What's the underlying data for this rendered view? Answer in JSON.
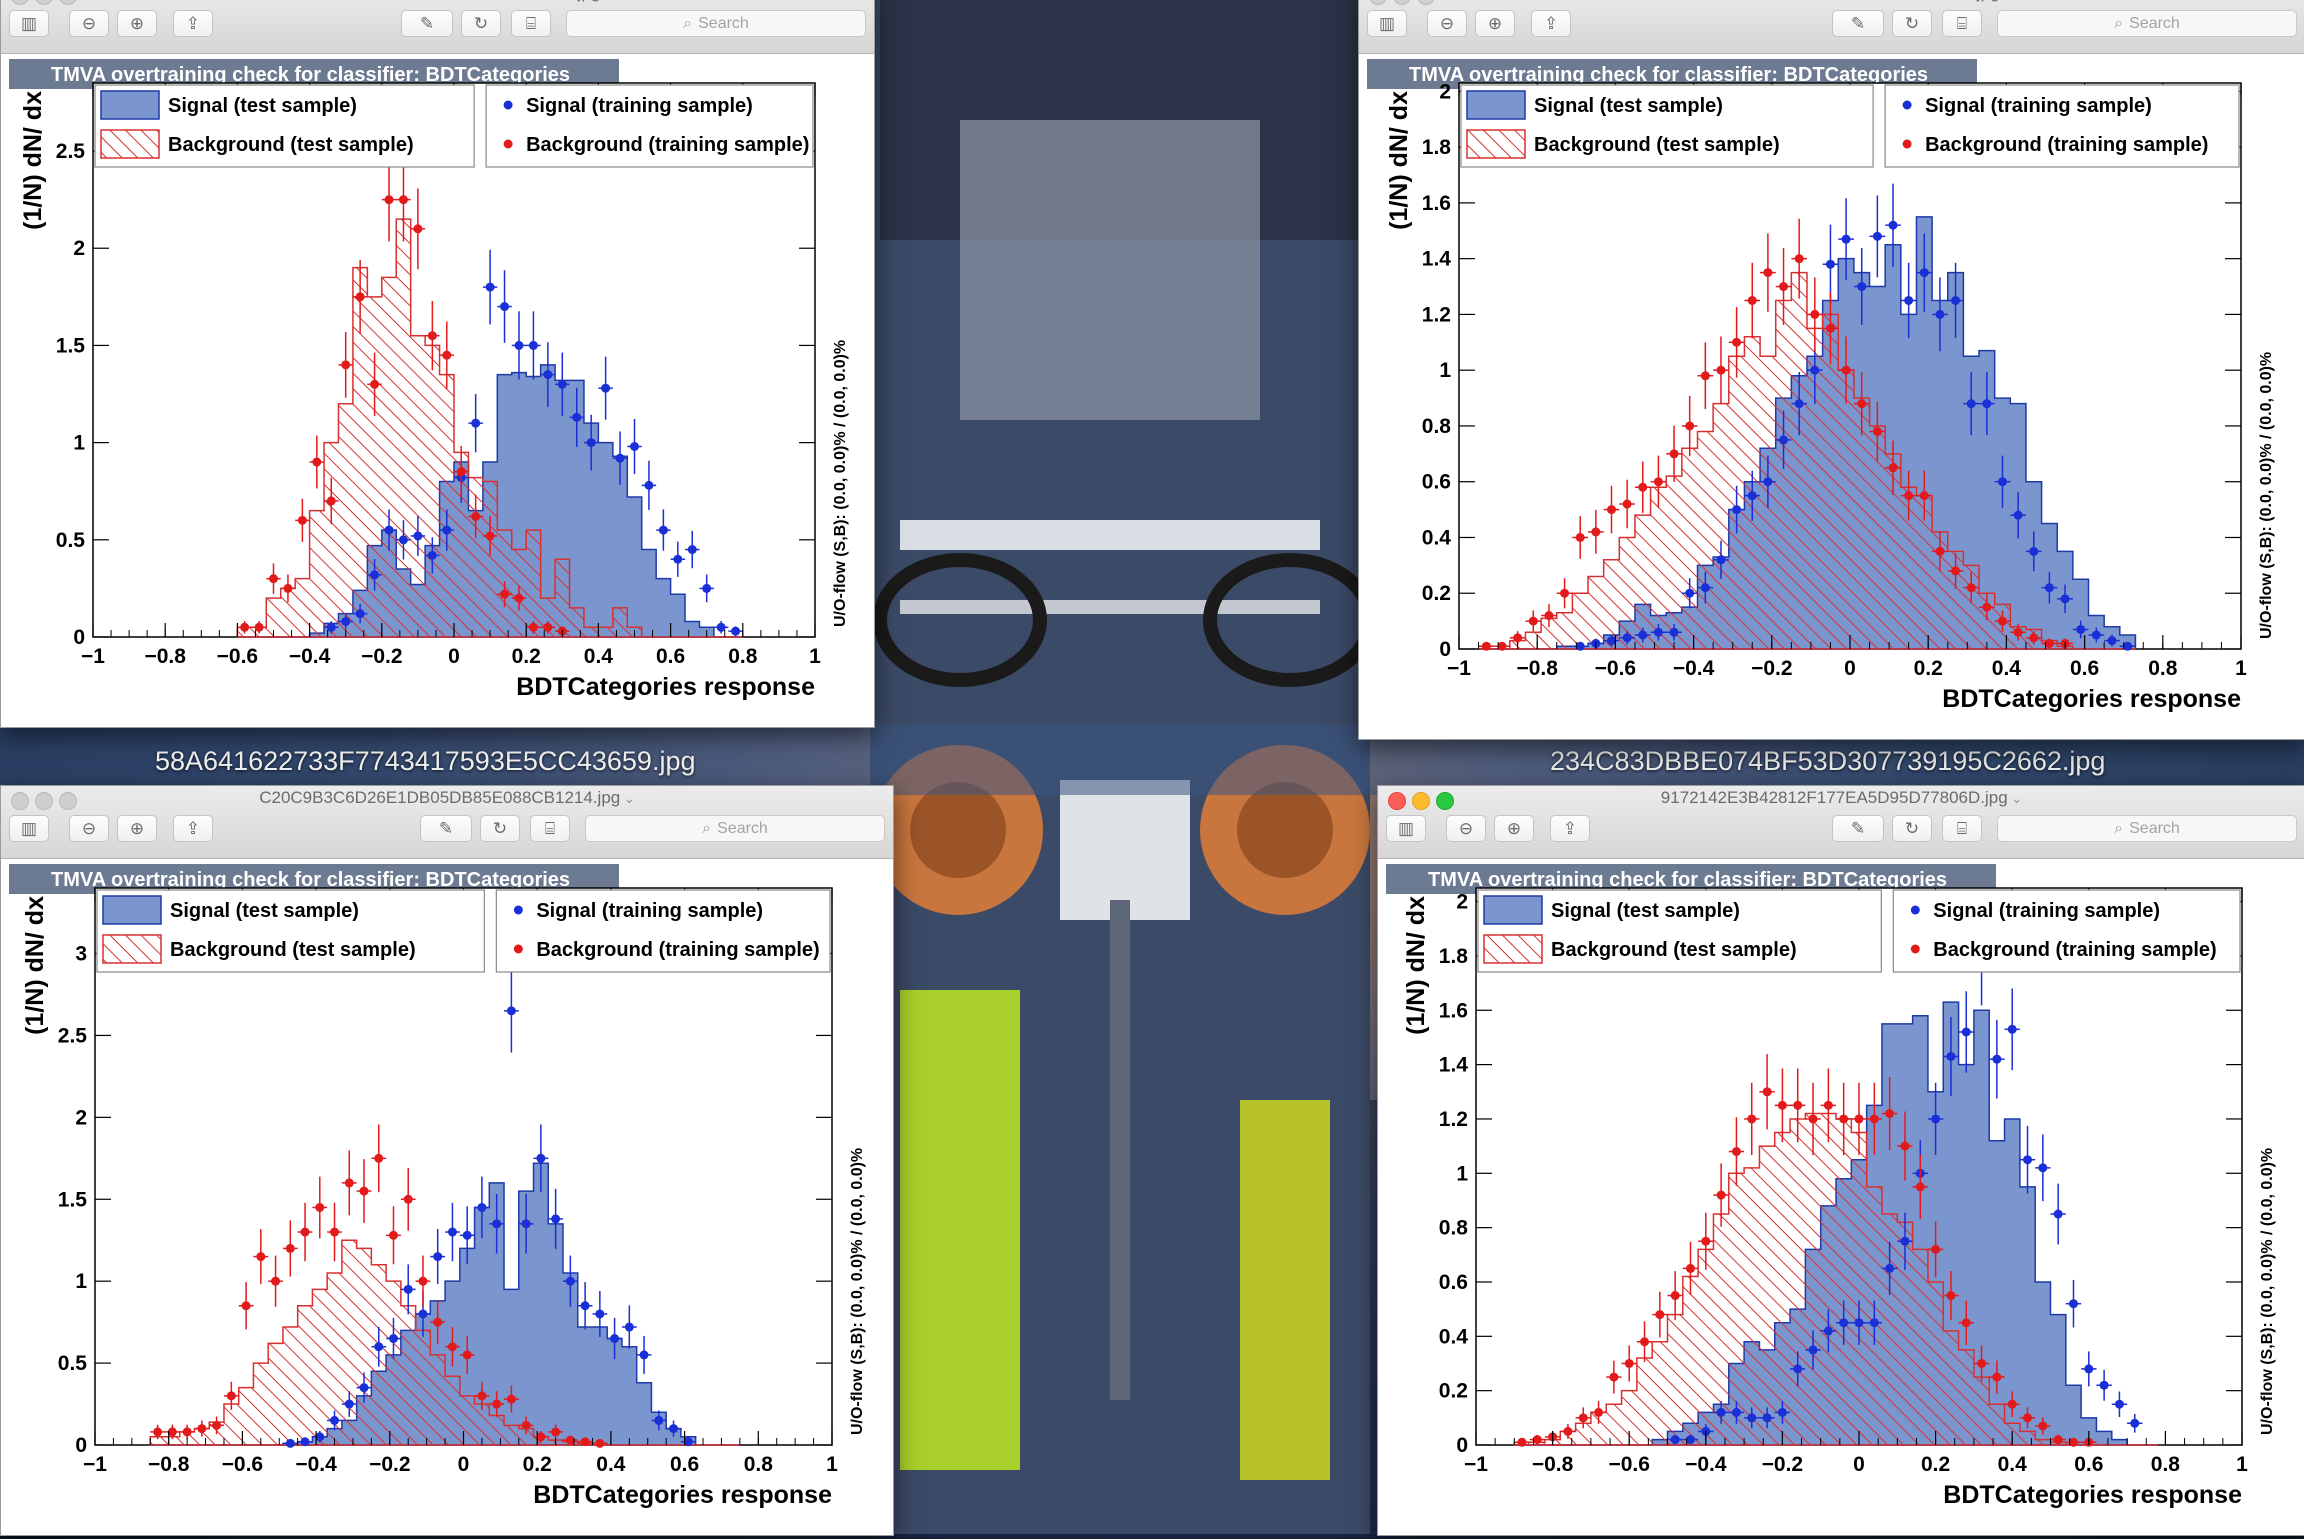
{
  "desktop": {
    "label_left": "58A641622733F7743417593E5CC43659.jpg",
    "label_right": "234C83DBBE074BF53D307739195C2662.jpg"
  },
  "icons": [
    "sidebar-toggle-icon",
    "zoom-out-icon",
    "zoom-in-icon",
    "share-icon",
    "markup-pen-icon",
    "rotate-icon",
    "toolbox-icon",
    "search-icon"
  ],
  "windows": [
    {
      "title": "58A641622733F7743417593E5CC43659.jpg",
      "search_placeholder": "Search",
      "active": false,
      "chart_data": {
        "type": "bar",
        "title": "TMVA overtraining check for classifier: BDTCategories",
        "xlabel": "BDTCategories response",
        "ylabel": "(1/N) dN/ dx",
        "right_label": "U/O-flow (S,B): (0.0, 0.0)% / (0.0, 0.0)%",
        "xlim": [
          -1,
          1
        ],
        "ylim": [
          0,
          2.85
        ],
        "xticks": [
          "−1",
          "−0.8",
          "−0.6",
          "−0.4",
          "−0.2",
          "0",
          "0.2",
          "0.4",
          "0.6",
          "0.8",
          "1"
        ],
        "yticks": [
          "0",
          "0.5",
          "1",
          "1.5",
          "2",
          "2.5"
        ],
        "x_start": -0.6,
        "bin_width": 0.04,
        "legend": [
          "Signal (test sample)",
          "Signal (training sample)",
          "Background (test sample)",
          "Background (training sample)"
        ],
        "series": [
          {
            "name": "Signal (test sample)",
            "values": [
              0,
              0,
              0,
              0,
              0,
              0.02,
              0.07,
              0.12,
              0.24,
              0.47,
              0.55,
              0.35,
              0.27,
              0.47,
              0.8,
              0.9,
              0.65,
              0.9,
              1.35,
              1.36,
              1.34,
              1.4,
              1.32,
              1.32,
              1.1,
              1.0,
              0.93,
              0.72,
              0.45,
              0.3,
              0.22,
              0.08,
              0.05,
              0,
              0
            ]
          },
          {
            "name": "Signal (training sample)",
            "values": [
              0,
              0,
              0,
              0,
              0,
              0,
              0.05,
              0.08,
              0.12,
              0.32,
              0.55,
              0.5,
              0.52,
              0.42,
              0.55,
              0.82,
              1.1,
              1.8,
              1.7,
              1.5,
              1.5,
              1.35,
              1.3,
              1.13,
              1.0,
              1.28,
              0.92,
              0.98,
              0.78,
              0.55,
              0.4,
              0.45,
              0.25,
              0.05,
              0.03
            ]
          },
          {
            "name": "Background (test sample)",
            "values": [
              0.05,
              0.05,
              0.2,
              0.25,
              0.3,
              0.65,
              1.0,
              1.2,
              1.9,
              1.75,
              1.85,
              2.15,
              1.55,
              1.5,
              1.35,
              0.95,
              0.82,
              0.8,
              0.55,
              0.45,
              0.55,
              0.2,
              0.4,
              0.15,
              0.05,
              0.05,
              0.15,
              0.05,
              0,
              0,
              0,
              0,
              0,
              0,
              0
            ]
          },
          {
            "name": "Background (training sample)",
            "values": [
              0.05,
              0.05,
              0.3,
              0.25,
              0.6,
              0.9,
              0.7,
              1.4,
              1.75,
              1.3,
              2.25,
              2.25,
              2.1,
              1.55,
              1.45,
              0.85,
              0.62,
              0.52,
              0.22,
              0.2,
              0.05,
              0.05,
              0.03,
              0,
              0,
              0,
              0,
              0,
              0,
              0,
              0,
              0,
              0,
              0,
              0
            ]
          }
        ]
      }
    },
    {
      "title": "234C83DBBE074BF53D307739195C2662.jpg",
      "search_placeholder": "Search",
      "active": false,
      "chart_data": {
        "type": "bar",
        "title": "TMVA overtraining check for classifier: BDTCategories",
        "xlabel": "BDTCategories response",
        "ylabel": "(1/N) dN/ dx",
        "right_label": "U/O-flow (S,B): (0.0, 0.0)% / (0.0, 0.0)%",
        "xlim": [
          -1,
          1
        ],
        "ylim": [
          0,
          2.03
        ],
        "xticks": [
          "−1",
          "−0.8",
          "−0.6",
          "−0.4",
          "−0.2",
          "0",
          "0.2",
          "0.4",
          "0.6",
          "0.8",
          "1"
        ],
        "yticks": [
          "0",
          "0.2",
          "0.4",
          "0.6",
          "0.8",
          "1",
          "1.2",
          "1.4",
          "1.6",
          "1.8",
          "2"
        ],
        "x_start": -0.95,
        "bin_width": 0.04,
        "legend": [
          "Signal (test sample)",
          "Signal (training sample)",
          "Background (test sample)",
          "Background (training sample)"
        ],
        "series": [
          {
            "name": "Signal (test sample)",
            "values": [
              0,
              0,
              0,
              0,
              0,
              0.01,
              0.01,
              0.02,
              0.05,
              0.1,
              0.16,
              0.12,
              0.13,
              0.15,
              0.3,
              0.33,
              0.5,
              0.6,
              0.72,
              0.9,
              0.98,
              1.05,
              1.25,
              1.4,
              1.35,
              1.3,
              1.45,
              1.2,
              1.55,
              1.25,
              1.35,
              1.05,
              1.07,
              0.9,
              0.88,
              0.6,
              0.45,
              0.35,
              0.25,
              0.12,
              0.08,
              0.05
            ]
          },
          {
            "name": "Signal (training sample)",
            "values": [
              0,
              0,
              0,
              0,
              0,
              0,
              0.01,
              0.02,
              0.03,
              0.04,
              0.05,
              0.06,
              0.06,
              0.2,
              0.22,
              0.32,
              0.5,
              0.55,
              0.6,
              0.75,
              0.88,
              1.0,
              1.38,
              1.47,
              1.3,
              1.48,
              1.52,
              1.25,
              1.35,
              1.2,
              1.25,
              0.88,
              0.88,
              0.6,
              0.48,
              0.35,
              0.22,
              0.18,
              0.07,
              0.05,
              0.03,
              0.01
            ]
          },
          {
            "name": "Background (test sample)",
            "values": [
              0,
              0,
              0.03,
              0.06,
              0.11,
              0.13,
              0.2,
              0.26,
              0.32,
              0.4,
              0.48,
              0.58,
              0.62,
              0.72,
              0.78,
              0.88,
              1.05,
              1.12,
              1.05,
              1.25,
              1.35,
              1.15,
              1.2,
              1.0,
              0.9,
              0.8,
              0.7,
              0.58,
              0.55,
              0.42,
              0.35,
              0.3,
              0.2,
              0.16,
              0.08,
              0.07,
              0.03,
              0.01,
              0,
              0,
              0,
              0
            ]
          },
          {
            "name": "Background (training sample)",
            "values": [
              0.01,
              0.01,
              0.04,
              0.1,
              0.12,
              0.2,
              0.4,
              0.42,
              0.5,
              0.52,
              0.58,
              0.6,
              0.7,
              0.8,
              0.98,
              1.0,
              1.1,
              1.25,
              1.35,
              1.3,
              1.4,
              1.2,
              1.15,
              1.0,
              0.88,
              0.78,
              0.65,
              0.55,
              0.55,
              0.35,
              0.28,
              0.22,
              0.15,
              0.1,
              0.06,
              0.04,
              0.02,
              0.02,
              0,
              0,
              0,
              0
            ]
          }
        ]
      }
    },
    {
      "title": "C20C9B3C6D26E1DB05DB85E088CB1214.jpg",
      "search_placeholder": "Search",
      "active": false,
      "chart_data": {
        "type": "bar",
        "title": "TMVA overtraining check for classifier: BDTCategories",
        "xlabel": "BDTCategories response",
        "ylabel": "(1/N) dN/ dx",
        "right_label": "U/O-flow (S,B): (0.0, 0.0)% / (0.0, 0.0)%",
        "xlim": [
          -1,
          1
        ],
        "ylim": [
          0,
          3.4
        ],
        "xticks": [
          "−1",
          "−0.8",
          "−0.6",
          "−0.4",
          "−0.2",
          "0",
          "0.2",
          "0.4",
          "0.6",
          "0.8",
          "1"
        ],
        "yticks": [
          "0",
          "0.5",
          "1",
          "1.5",
          "2",
          "2.5",
          "3"
        ],
        "x_start": -0.85,
        "bin_width": 0.04,
        "legend": [
          "Signal (test sample)",
          "Signal (training sample)",
          "Background (test sample)",
          "Background (training sample)"
        ],
        "series": [
          {
            "name": "Signal (test sample)",
            "values": [
              0,
              0,
              0,
              0,
              0,
              0,
              0,
              0,
              0,
              0.01,
              0.02,
              0.05,
              0.1,
              0.15,
              0.3,
              0.45,
              0.55,
              0.7,
              0.8,
              0.88,
              1.0,
              1.2,
              1.45,
              1.6,
              0.95,
              1.55,
              1.72,
              1.35,
              1.05,
              0.72,
              0.72,
              0.65,
              0.6,
              0.38,
              0.2,
              0.1,
              0.05,
              0,
              0,
              0
            ]
          },
          {
            "name": "Signal (training sample)",
            "values": [
              0,
              0,
              0,
              0,
              0,
              0,
              0,
              0,
              0,
              0.01,
              0.02,
              0.05,
              0.15,
              0.25,
              0.35,
              0.6,
              0.65,
              0.95,
              0.8,
              1.15,
              1.3,
              1.28,
              1.45,
              1.35,
              2.65,
              1.35,
              1.75,
              1.38,
              1.0,
              0.85,
              0.8,
              0.65,
              0.72,
              0.55,
              0.15,
              0.1,
              0.02,
              0,
              0,
              0
            ]
          },
          {
            "name": "Background (test sample)",
            "values": [
              0.05,
              0.05,
              0.08,
              0.1,
              0.14,
              0.25,
              0.35,
              0.5,
              0.62,
              0.72,
              0.85,
              0.95,
              1.05,
              1.25,
              1.2,
              1.1,
              1.0,
              0.85,
              0.7,
              0.55,
              0.42,
              0.3,
              0.25,
              0.18,
              0.12,
              0.1,
              0.05,
              0.03,
              0.02,
              0.01,
              0.01,
              0,
              0,
              0,
              0,
              0,
              0,
              0,
              0,
              0
            ]
          },
          {
            "name": "Background (training sample)",
            "values": [
              0.08,
              0.08,
              0.08,
              0.1,
              0.12,
              0.3,
              0.85,
              1.15,
              1.0,
              1.2,
              1.3,
              1.45,
              1.3,
              1.6,
              1.55,
              1.75,
              1.28,
              1.5,
              1.0,
              0.75,
              0.6,
              0.55,
              0.3,
              0.25,
              0.28,
              0.12,
              0.05,
              0.08,
              0.03,
              0.02,
              0.01,
              0,
              0,
              0,
              0,
              0,
              0,
              0,
              0,
              0
            ]
          }
        ]
      }
    },
    {
      "title": "9172142E3B42812F177EA5D95D77806D.jpg",
      "search_placeholder": "Search",
      "active": true,
      "chart_data": {
        "type": "bar",
        "title": "TMVA overtraining check for classifier: BDTCategories",
        "xlabel": "BDTCategories response",
        "ylabel": "(1/N) dN/ dx",
        "right_label": "U/O-flow (S,B): (0.0, 0.0)% / (0.0, 0.0)%",
        "xlim": [
          -1,
          1
        ],
        "ylim": [
          0,
          2.05
        ],
        "xticks": [
          "−1",
          "−0.8",
          "−0.6",
          "−0.4",
          "−0.2",
          "0",
          "0.2",
          "0.4",
          "0.6",
          "0.8",
          "1"
        ],
        "yticks": [
          "0",
          "0.2",
          "0.4",
          "0.6",
          "0.8",
          "1",
          "1.2",
          "1.4",
          "1.6",
          "1.8",
          "2"
        ],
        "x_start": -0.9,
        "bin_width": 0.04,
        "legend": [
          "Signal (test sample)",
          "Signal (training sample)",
          "Background (test sample)",
          "Background (training sample)"
        ],
        "series": [
          {
            "name": "Signal (test sample)",
            "values": [
              0,
              0,
              0,
              0,
              0,
              0,
              0,
              0,
              0,
              0.02,
              0.05,
              0.08,
              0.12,
              0.15,
              0.3,
              0.38,
              0.35,
              0.45,
              0.5,
              0.72,
              0.88,
              0.98,
              1.05,
              1.25,
              1.55,
              1.55,
              1.58,
              1.3,
              1.63,
              1.4,
              1.6,
              1.12,
              1.2,
              0.95,
              0.6,
              0.48,
              0.22,
              0.1,
              0.05,
              0.02,
              0,
              0
            ]
          },
          {
            "name": "Signal (training sample)",
            "values": [
              0,
              0,
              0,
              0,
              0,
              0,
              0,
              0,
              0,
              0,
              0.02,
              0.02,
              0.05,
              0.12,
              0.12,
              0.1,
              0.1,
              0.12,
              0.28,
              0.35,
              0.42,
              0.45,
              0.45,
              0.45,
              0.65,
              0.75,
              1.0,
              1.2,
              1.43,
              1.52,
              1.78,
              1.42,
              1.53,
              1.05,
              1.02,
              0.85,
              0.52,
              0.28,
              0.22,
              0.15,
              0.08,
              0
            ]
          },
          {
            "name": "Background (test sample)",
            "values": [
              0.01,
              0.01,
              0.02,
              0.05,
              0.08,
              0.12,
              0.15,
              0.2,
              0.32,
              0.38,
              0.48,
              0.62,
              0.72,
              0.85,
              1.0,
              1.02,
              1.1,
              1.15,
              1.2,
              1.22,
              1.22,
              1.2,
              1.15,
              0.95,
              0.85,
              0.82,
              0.72,
              0.6,
              0.42,
              0.35,
              0.25,
              0.15,
              0.08,
              0.05,
              0.02,
              0.01,
              0,
              0,
              0,
              0,
              0,
              0
            ]
          },
          {
            "name": "Background (training sample)",
            "values": [
              0.01,
              0.02,
              0.03,
              0.05,
              0.1,
              0.12,
              0.25,
              0.3,
              0.38,
              0.48,
              0.55,
              0.65,
              0.75,
              0.92,
              1.08,
              1.2,
              1.3,
              1.25,
              1.25,
              1.2,
              1.25,
              1.2,
              1.2,
              1.2,
              1.22,
              1.1,
              0.95,
              0.72,
              0.55,
              0.45,
              0.3,
              0.25,
              0.15,
              0.1,
              0.07,
              0.02,
              0.01,
              0.01,
              0,
              0,
              0,
              0
            ]
          }
        ]
      }
    }
  ]
}
